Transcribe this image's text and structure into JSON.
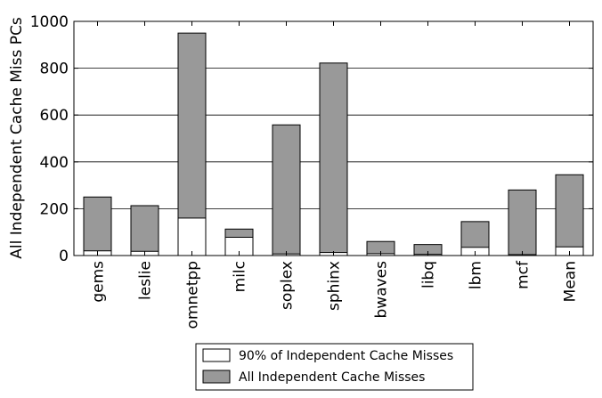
{
  "chart_data": {
    "type": "bar",
    "stacked": false,
    "overlaid": true,
    "categories": [
      "gems",
      "leslie",
      "omnetpp",
      "milc",
      "soplex",
      "sphinx",
      "bwaves",
      "libq",
      "lbm",
      "mcf",
      "Mean"
    ],
    "series": [
      {
        "name": "All Independent Cache Misses",
        "color": "#999999",
        "values": [
          250,
          213,
          950,
          113,
          558,
          822,
          60,
          47,
          145,
          280,
          345
        ]
      },
      {
        "name": "90% of Independent Cache Misses",
        "color": "#ffffff",
        "values": [
          20,
          18,
          160,
          78,
          7,
          13,
          8,
          5,
          35,
          4,
          37
        ]
      }
    ],
    "title": "",
    "xlabel": "",
    "ylabel": "All Independent Cache Miss PCs",
    "ylim": [
      0,
      1000
    ],
    "yticks": [
      0,
      200,
      400,
      600,
      800,
      1000
    ],
    "grid": "horizontal",
    "legend_position": "bottom"
  }
}
